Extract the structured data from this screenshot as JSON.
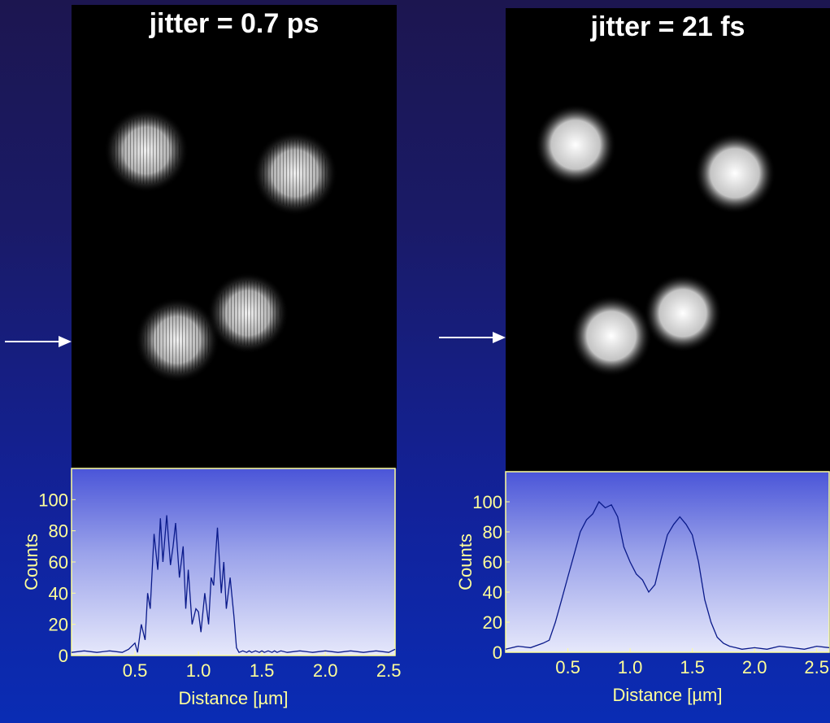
{
  "panels": [
    {
      "id": "left",
      "title": "jitter = 0.7 ps",
      "chart_data": {
        "type": "line",
        "xlabel": "Distance [µm]",
        "ylabel": "Counts",
        "xlim": [
          0.0,
          2.55
        ],
        "ylim": [
          0,
          120
        ],
        "x_ticks": [
          "0.5",
          "1.0",
          "1.5",
          "2.0",
          "2.5"
        ],
        "y_ticks": [
          "0",
          "20",
          "40",
          "60",
          "80",
          "100"
        ],
        "x": [
          0.0,
          0.1,
          0.2,
          0.3,
          0.4,
          0.45,
          0.5,
          0.52,
          0.55,
          0.58,
          0.6,
          0.62,
          0.65,
          0.68,
          0.7,
          0.72,
          0.75,
          0.78,
          0.8,
          0.82,
          0.85,
          0.88,
          0.9,
          0.92,
          0.95,
          0.98,
          1.0,
          1.02,
          1.05,
          1.08,
          1.1,
          1.12,
          1.15,
          1.18,
          1.2,
          1.22,
          1.25,
          1.28,
          1.3,
          1.32,
          1.35,
          1.38,
          1.4,
          1.42,
          1.45,
          1.48,
          1.5,
          1.52,
          1.55,
          1.58,
          1.6,
          1.62,
          1.65,
          1.7,
          1.8,
          1.9,
          2.0,
          2.1,
          2.2,
          2.3,
          2.4,
          2.5,
          2.55
        ],
        "y": [
          2,
          3,
          2,
          3,
          2,
          4,
          8,
          2,
          20,
          10,
          40,
          30,
          78,
          55,
          88,
          60,
          90,
          58,
          70,
          85,
          50,
          70,
          30,
          55,
          20,
          30,
          28,
          15,
          40,
          20,
          50,
          45,
          82,
          40,
          60,
          30,
          50,
          25,
          5,
          2,
          3,
          2,
          3,
          2,
          3,
          2,
          3,
          2,
          3,
          2,
          3,
          2,
          3,
          2,
          3,
          2,
          3,
          2,
          3,
          2,
          3,
          2,
          4
        ]
      },
      "spots": [
        {
          "cx": 180,
          "cy": 185,
          "r": 52
        },
        {
          "cx": 363,
          "cy": 213,
          "r": 52
        },
        {
          "cx": 218,
          "cy": 418,
          "r": 52
        },
        {
          "cx": 305,
          "cy": 385,
          "r": 50
        }
      ]
    },
    {
      "id": "right",
      "title": "jitter = 21 fs",
      "chart_data": {
        "type": "line",
        "xlabel": "Distance [µm]",
        "ylabel": "Counts",
        "xlim": [
          0.0,
          2.6
        ],
        "ylim": [
          0,
          120
        ],
        "x_ticks": [
          "0.5",
          "1.0",
          "1.5",
          "2.0",
          "2.5"
        ],
        "y_ticks": [
          "0",
          "20",
          "40",
          "60",
          "80",
          "100"
        ],
        "x": [
          0.0,
          0.1,
          0.2,
          0.3,
          0.35,
          0.4,
          0.45,
          0.5,
          0.55,
          0.6,
          0.65,
          0.7,
          0.75,
          0.8,
          0.85,
          0.9,
          0.95,
          1.0,
          1.05,
          1.1,
          1.15,
          1.2,
          1.25,
          1.3,
          1.35,
          1.4,
          1.45,
          1.5,
          1.55,
          1.6,
          1.65,
          1.7,
          1.75,
          1.8,
          1.85,
          1.9,
          2.0,
          2.1,
          2.2,
          2.3,
          2.4,
          2.5,
          2.6
        ],
        "y": [
          2,
          4,
          3,
          6,
          8,
          20,
          35,
          50,
          65,
          80,
          88,
          92,
          100,
          96,
          98,
          90,
          70,
          60,
          52,
          48,
          40,
          45,
          62,
          78,
          85,
          90,
          85,
          78,
          60,
          35,
          20,
          10,
          6,
          4,
          3,
          2,
          3,
          2,
          4,
          3,
          2,
          4,
          3
        ]
      },
      "spots": [
        {
          "cx": 708,
          "cy": 178,
          "r": 50
        },
        {
          "cx": 904,
          "cy": 213,
          "r": 50
        },
        {
          "cx": 752,
          "cy": 413,
          "r": 50
        },
        {
          "cx": 840,
          "cy": 385,
          "r": 48
        }
      ]
    }
  ]
}
